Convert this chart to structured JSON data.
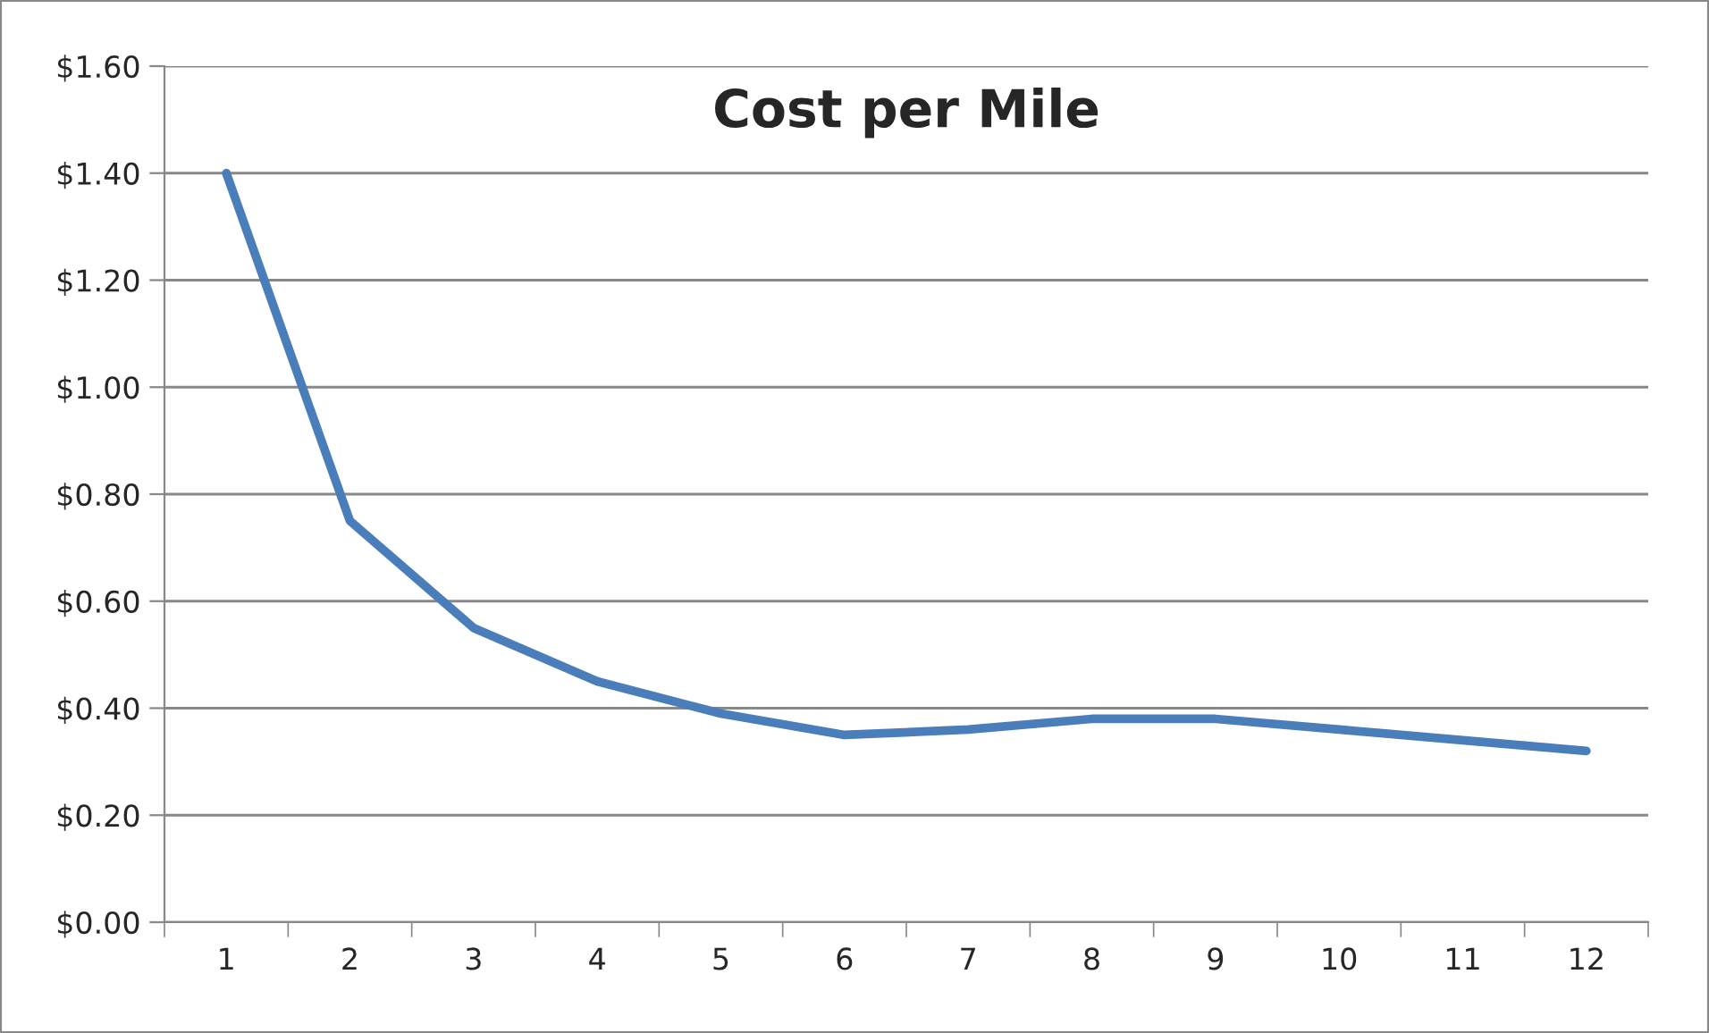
{
  "chart_data": {
    "type": "line",
    "title": "Cost per Mile",
    "categories": [
      "1",
      "2",
      "3",
      "4",
      "5",
      "6",
      "7",
      "8",
      "9",
      "10",
      "11",
      "12"
    ],
    "series": [
      {
        "color": "#4a7ebb",
        "values": [
          1.4,
          0.75,
          0.55,
          0.45,
          0.39,
          0.35,
          0.36,
          0.38,
          0.38,
          0.36,
          0.34,
          0.32
        ]
      }
    ],
    "ylim": [
      0,
      1.6
    ],
    "yticks": [
      {
        "value": 0,
        "label": "$0.00"
      },
      {
        "value": 0.2,
        "label": "$0.20"
      },
      {
        "value": 0.4,
        "label": "$0.40"
      },
      {
        "value": 0.6,
        "label": "$0.60"
      },
      {
        "value": 0.8,
        "label": "$0.80"
      },
      {
        "value": 1.0,
        "label": "$1.00"
      },
      {
        "value": 1.2,
        "label": "$1.20"
      },
      {
        "value": 1.4,
        "label": "$1.40"
      },
      {
        "value": 1.6,
        "label": "$1.60"
      }
    ],
    "grid": "y",
    "legend": false,
    "marker": "none",
    "line_style": "solid"
  }
}
